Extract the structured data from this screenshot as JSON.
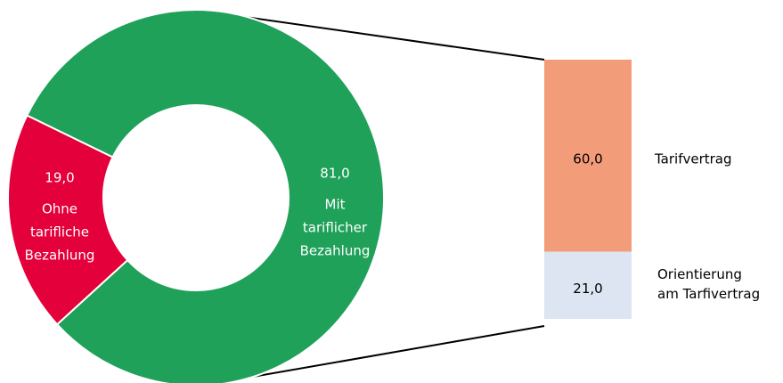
{
  "chart_data": [
    {
      "type": "donut",
      "categories": [
        [
          "Ohne",
          "tarifliche",
          "Bezahlung"
        ],
        [
          "Mit",
          "tariflicher",
          "Bezahlung"
        ]
      ],
      "values": [
        19,
        81
      ],
      "value_labels": [
        "19,0",
        "81,0"
      ],
      "colors": [
        "#e4003a",
        "#1fa15a"
      ]
    },
    {
      "type": "stacked-bar",
      "categories": [
        [
          "Tarifvertrag"
        ],
        [
          "Orientierung",
          "am Tarfivertrag"
        ]
      ],
      "values": [
        60,
        21
      ],
      "value_labels": [
        "60,0",
        "21,0"
      ],
      "colors": [
        "#f39c7a",
        "#dde4f2"
      ]
    }
  ]
}
